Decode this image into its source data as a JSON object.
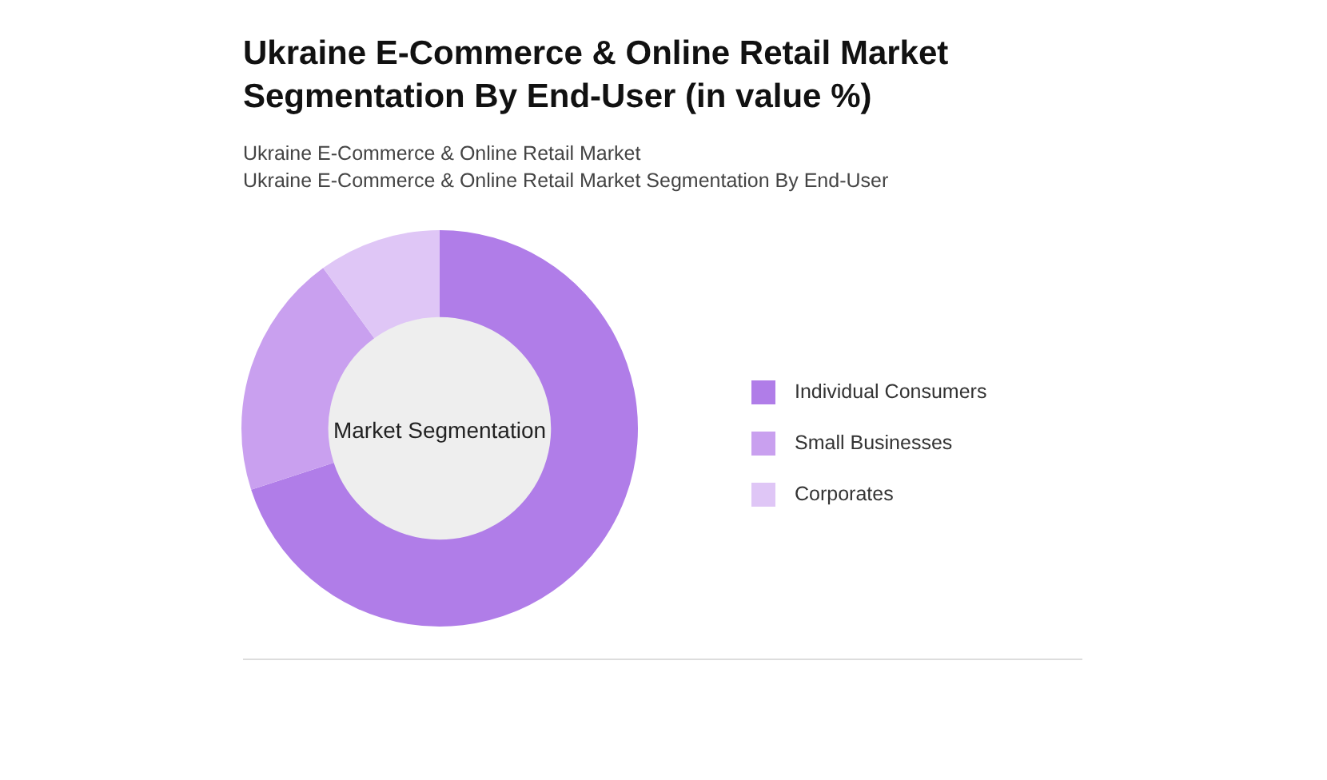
{
  "chart_data": {
    "type": "donut",
    "title": "Ukraine E-Commerce & Online Retail Market Segmentation By End-User (in value %)",
    "subtitle": "Ukraine E-Commerce & Online Retail Market\nUkraine E-Commerce & Online Retail Market Segmentation By End-User",
    "categories": [
      "Individual Consumers",
      "Small Businesses",
      "Corporates"
    ],
    "values": [
      70,
      20,
      10
    ],
    "colors": [
      "#b07de8",
      "#c9a0ef",
      "#dfc6f6"
    ],
    "annotations": [
      "Market Segmentation"
    ],
    "legend": "right"
  }
}
